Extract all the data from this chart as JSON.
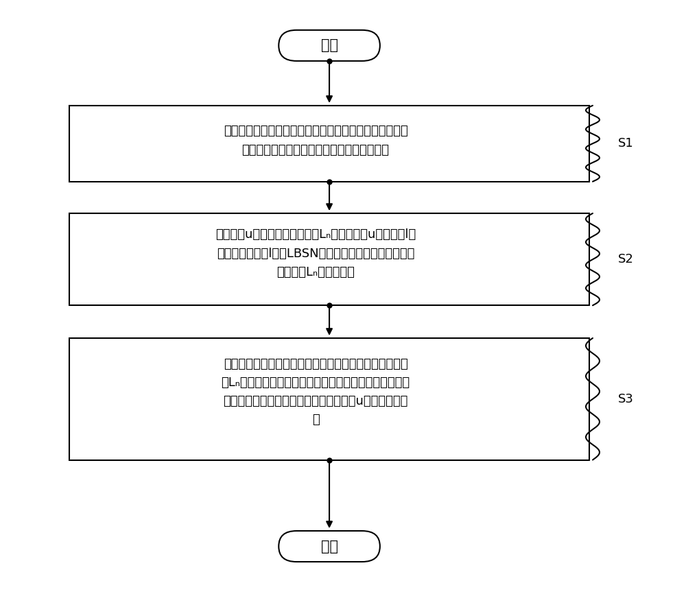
{
  "bg_color": "#ffffff",
  "line_color": "#000000",
  "box_fill": "#ffffff",
  "box_edge_color": "#000000",
  "arrow_color": "#000000",
  "dot_color": "#000000",
  "font_color": "#000000",
  "start_text": "开始",
  "end_text": "结束",
  "s1_label": "S1",
  "s2_label": "S2",
  "s3_label": "S3",
  "s1_line1": "计算预先构建的共现图中任意两个节点间的相似性，所述",
  "s1_line2": "相似性表示所述任意两个节点之间的相近程度",
  "s2_line1": "根据用户u访问的历史位置集合Lₙ，得到用户u访问位置l所",
  "s2_line2": "处区域的概率，l属于LBSN中所有用户已访问的兴趣点，",
  "s2_line3": "但不属于Lₙ中的兴趣点",
  "s3_line1": "由上述任意两个节点间的相似性得到各待推荐的候选节点",
  "s3_line2": "与Lₙ间的相似性，由访问概率得到用户访问各待推荐的候",
  "s3_line3": "选节点所处区域的概率，结合两者对用户u进行兴趣点推",
  "s3_line4": "荐",
  "fig_width": 10.0,
  "fig_height": 8.69,
  "dpi": 100
}
